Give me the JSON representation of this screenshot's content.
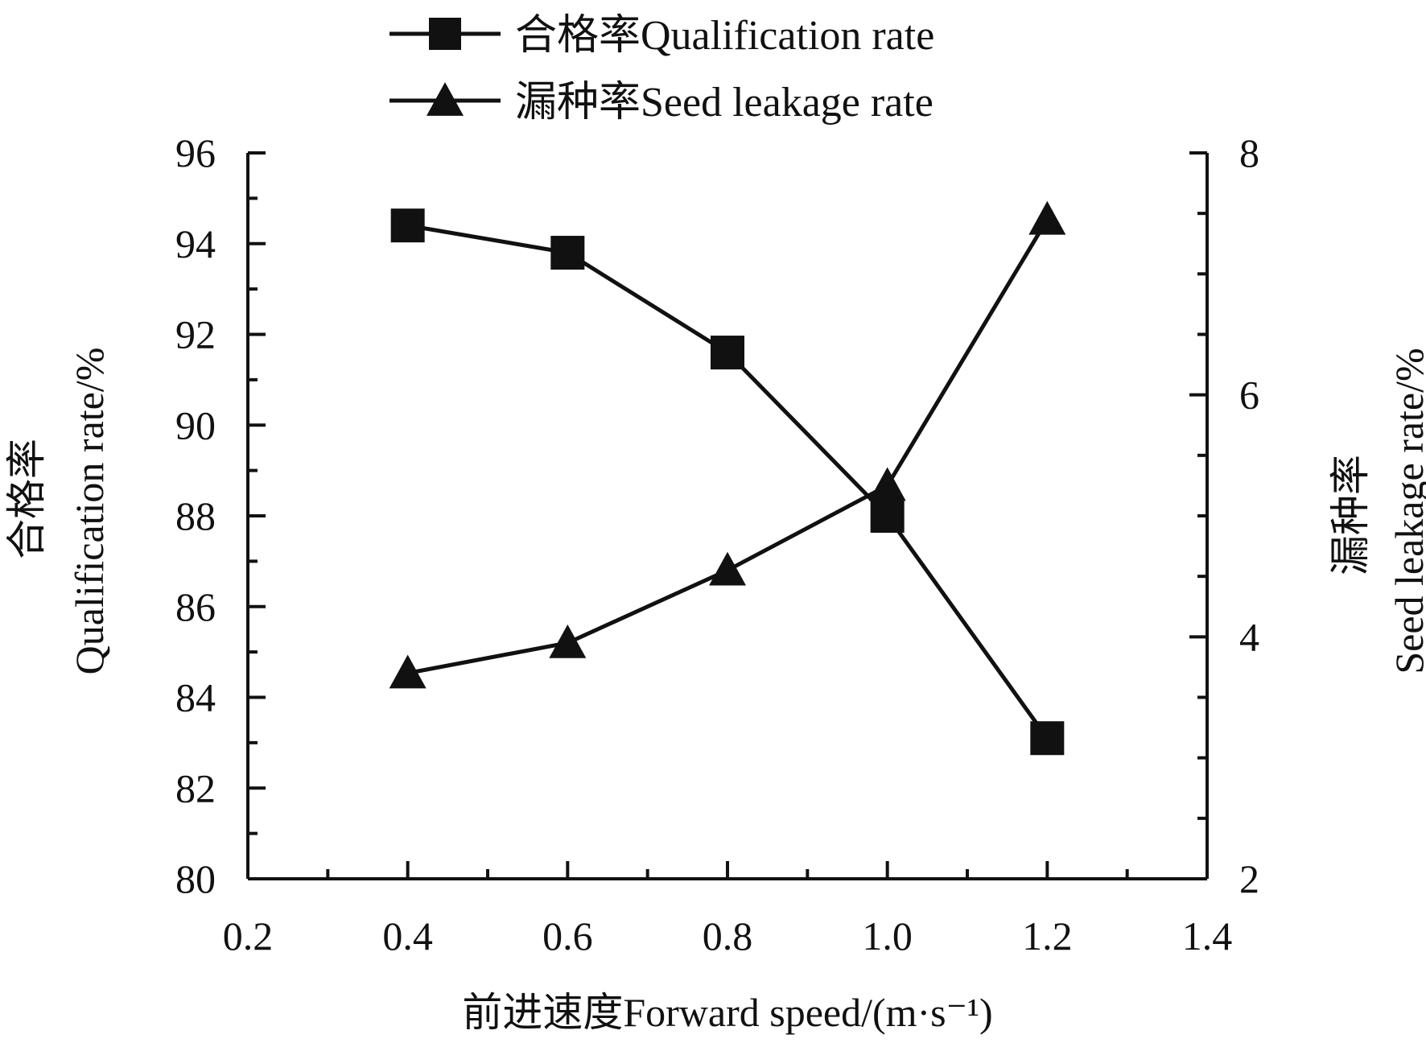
{
  "chart_data": {
    "type": "line",
    "x": [
      0.4,
      0.6,
      0.8,
      1.0,
      1.2
    ],
    "x_tick_labels": [
      "0.2",
      "0.4",
      "0.6",
      "0.8",
      "1.0",
      "1.2",
      "1.4"
    ],
    "xlim": [
      0.2,
      1.4
    ],
    "xlabel": "前进速度Forward speed/(m·s⁻¹)",
    "ylim_left": [
      80,
      96
    ],
    "y_left_tick_labels": [
      "80",
      "82",
      "84",
      "86",
      "88",
      "90",
      "92",
      "94",
      "96"
    ],
    "ylabel_left_cn": "合格率",
    "ylabel_left_en": "Qualification rate/%",
    "ylim_right": [
      2,
      8
    ],
    "y_right_tick_labels": [
      "2",
      "4",
      "6",
      "8"
    ],
    "ylabel_right_cn": "漏种率",
    "ylabel_right_en": "Seed leakage rate/%",
    "series": [
      {
        "name": "合格率Qualification rate",
        "axis": "left",
        "marker": "square",
        "values": [
          94.4,
          93.8,
          91.6,
          88.0,
          83.1
        ]
      },
      {
        "name": "漏种率Seed leakage rate",
        "axis": "right",
        "marker": "triangle",
        "values": [
          3.7,
          3.95,
          4.55,
          5.25,
          7.45
        ]
      }
    ],
    "legend_position": "top-center",
    "grid": false,
    "color": "#111111"
  }
}
